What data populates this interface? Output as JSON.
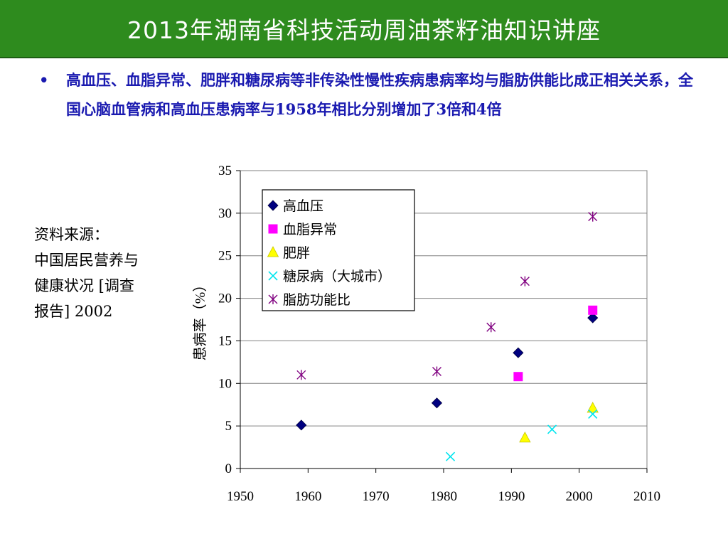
{
  "title": "2013年湖南省科技活动周油茶籽油知识讲座",
  "bullet": {
    "marker": "•",
    "text": "高血压、血脂异常、肥胖和糖尿病等非传染性慢性疾病患病率均与脂肪供能比成正相关关系，全国心脑血管病和高血压患病率与1958年相比分别增加了3倍和4倍"
  },
  "source": {
    "label": "资料来源：",
    "text": "中国居民营养与健康状况 [调查报告]  2002"
  },
  "colors": {
    "title_bg": "#2e8b1e",
    "bullet_text": "#1a1ab0",
    "hypertension": "#000080",
    "dyslipidemia": "#ff00ff",
    "obesity": "#ffff00",
    "diabetes": "#00e5ee",
    "fat_ratio": "#800080"
  },
  "chart_data": {
    "type": "scatter",
    "xlim": [
      1950,
      2010
    ],
    "ylim": [
      0,
      35
    ],
    "xticks": [
      "1950",
      "1960",
      "1970",
      "1980",
      "1990",
      "2000",
      "2010"
    ],
    "yticks": [
      "0",
      "5",
      "10",
      "15",
      "20",
      "25",
      "30",
      "35"
    ],
    "ylabel": "患病率（%）",
    "grid": "horizontal",
    "legend_position": "top-left-inside",
    "series": [
      {
        "name": "高血压",
        "marker": "diamond",
        "color": "#000080",
        "points": [
          [
            1959,
            5.1
          ],
          [
            1979,
            7.7
          ],
          [
            1991,
            13.6
          ],
          [
            2002,
            17.7
          ]
        ]
      },
      {
        "name": "血脂异常",
        "marker": "square",
        "color": "#ff00ff",
        "points": [
          [
            1991,
            10.8
          ],
          [
            2002,
            18.6
          ]
        ]
      },
      {
        "name": "肥胖",
        "marker": "triangle",
        "color": "#ffff00",
        "points": [
          [
            1992,
            3.6
          ],
          [
            2002,
            7.1
          ]
        ]
      },
      {
        "name": "糖尿病（大城市）",
        "marker": "x",
        "color": "#00e5ee",
        "points": [
          [
            1981,
            1.4
          ],
          [
            1996,
            4.6
          ],
          [
            2002,
            6.4
          ]
        ]
      },
      {
        "name": "脂肪功能比",
        "marker": "asterisk",
        "color": "#800080",
        "points": [
          [
            1959,
            11.0
          ],
          [
            1979,
            11.4
          ],
          [
            1987,
            16.6
          ],
          [
            1992,
            22.0
          ],
          [
            2002,
            29.6
          ]
        ]
      }
    ]
  }
}
